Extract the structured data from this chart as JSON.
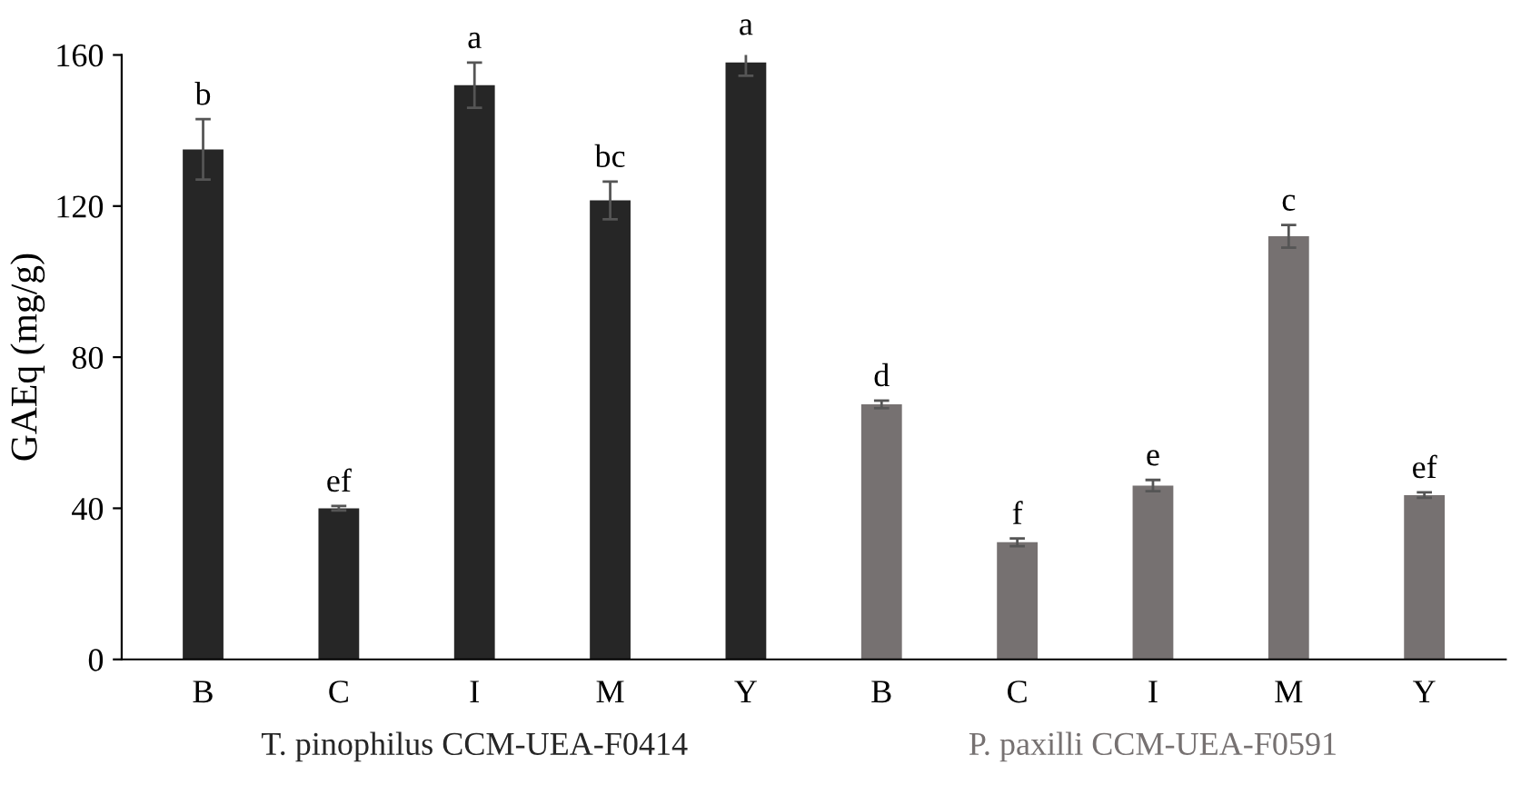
{
  "chart_data": {
    "type": "bar",
    "ylabel": "GAEq (mg/g)",
    "categories": [
      "B",
      "C",
      "I",
      "M",
      "Y",
      "B",
      "C",
      "I",
      "M",
      "Y"
    ],
    "series": [
      {
        "name": "T. pinophilus CCM-UEA-F0414",
        "color": "#262626",
        "values": [
          135,
          40,
          152,
          121.5,
          158,
          null,
          null,
          null,
          null,
          null
        ],
        "errors": [
          8,
          0.6,
          6,
          5,
          3.5,
          null,
          null,
          null,
          null,
          null
        ],
        "value_labels": [
          "b",
          "ef",
          "a",
          "bc",
          "a",
          null,
          null,
          null,
          null,
          null
        ]
      },
      {
        "name": "P. paxilli CCM-UEA-F0591",
        "color": "#767171",
        "values": [
          null,
          null,
          null,
          null,
          null,
          67.5,
          31,
          46,
          112,
          43.5
        ],
        "errors": [
          null,
          null,
          null,
          null,
          null,
          1,
          1,
          1.5,
          3,
          0.7
        ],
        "value_labels": [
          null,
          null,
          null,
          null,
          null,
          "d",
          "f",
          "e",
          "c",
          "ef"
        ]
      }
    ],
    "ylim": [
      0,
      160
    ],
    "yticks": [
      0,
      40,
      80,
      120,
      160
    ],
    "grid": false,
    "legend": false
  }
}
